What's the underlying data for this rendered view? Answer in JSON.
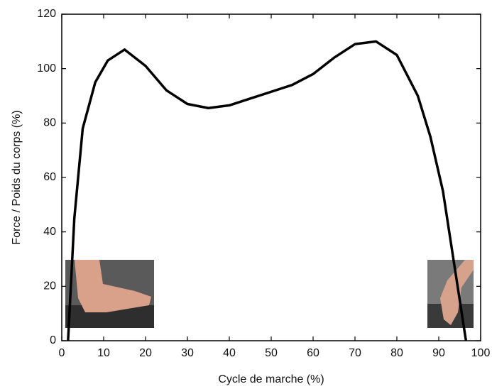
{
  "chart_data": {
    "type": "line",
    "xlabel": "Cycle de marche (%)",
    "ylabel": "Force / Poids du corps (%)",
    "x": [
      1.5,
      3,
      5,
      8,
      11,
      15,
      20,
      25,
      30,
      35,
      40,
      45,
      50,
      55,
      60,
      65,
      70,
      75,
      80,
      85,
      88,
      91,
      94,
      96.5
    ],
    "series": [
      {
        "color": "#000000",
        "values": [
          0,
          45,
          78,
          95,
          103,
          107,
          101,
          92,
          87,
          85.5,
          86.5,
          89,
          91.5,
          94,
          98,
          104,
          109,
          110,
          105,
          90,
          75,
          55,
          25,
          0
        ]
      }
    ],
    "xlim": [
      0,
      100
    ],
    "xticks": [
      0,
      10,
      20,
      30,
      40,
      50,
      60,
      70,
      80,
      90,
      100
    ],
    "ylim": [
      0,
      120
    ],
    "yticks": [
      0,
      20,
      40,
      60,
      80,
      100,
      120
    ],
    "grid": false
  }
}
